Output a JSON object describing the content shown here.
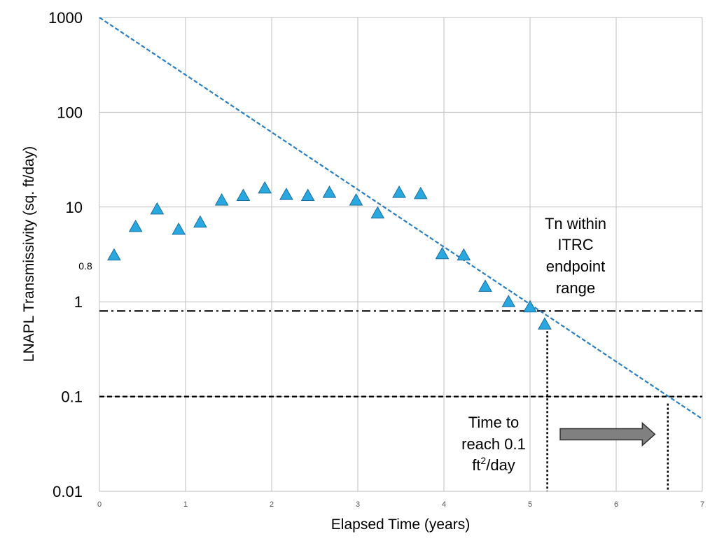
{
  "chart_data": {
    "type": "scatter",
    "title": "",
    "xlabel": "Elapsed Time (years)",
    "ylabel": "LNAPL Transmissivity (sq. ft/day)",
    "xlim": [
      0,
      7
    ],
    "ylim": [
      0.01,
      1000
    ],
    "y_scale": "log",
    "grid": true,
    "x_ticks": [
      "0",
      "1",
      "2",
      "3",
      "4",
      "5",
      "6",
      "7"
    ],
    "y_ticks": [
      {
        "value": 1000,
        "label": "1000"
      },
      {
        "value": 100,
        "label": "100"
      },
      {
        "value": 10,
        "label": "10"
      },
      {
        "value": 1,
        "label": "1"
      },
      {
        "value": 0.1,
        "label": "0.1"
      },
      {
        "value": 0.01,
        "label": "0.01"
      }
    ],
    "marker_color": "#29a8e0",
    "series": [
      {
        "values": [
          {
            "x": 0.17,
            "y": 3.1
          },
          {
            "x": 0.42,
            "y": 6.2
          },
          {
            "x": 0.67,
            "y": 9.5
          },
          {
            "x": 0.92,
            "y": 5.8
          },
          {
            "x": 1.17,
            "y": 6.9
          },
          {
            "x": 1.42,
            "y": 11.8
          },
          {
            "x": 1.67,
            "y": 13.2
          },
          {
            "x": 1.92,
            "y": 15.8
          },
          {
            "x": 2.17,
            "y": 13.5
          },
          {
            "x": 2.42,
            "y": 13.2
          },
          {
            "x": 2.67,
            "y": 14.2
          },
          {
            "x": 2.98,
            "y": 11.8
          },
          {
            "x": 3.23,
            "y": 8.6
          },
          {
            "x": 3.48,
            "y": 14.2
          },
          {
            "x": 3.73,
            "y": 13.8
          },
          {
            "x": 3.98,
            "y": 3.2
          },
          {
            "x": 4.23,
            "y": 3.1
          },
          {
            "x": 4.48,
            "y": 1.45
          },
          {
            "x": 4.75,
            "y": 1.0
          },
          {
            "x": 5.0,
            "y": 0.88
          },
          {
            "x": 5.17,
            "y": 0.58
          }
        ]
      }
    ],
    "trendline": {
      "style": "dashed",
      "color": "#2a7fc0",
      "from": {
        "x": 0,
        "y": 1000
      },
      "to": {
        "x": 7,
        "y": 0.058
      }
    },
    "reference_lines": [
      {
        "y": 0.8,
        "style": "dash-dot",
        "color": "#000000"
      },
      {
        "y": 0.1,
        "style": "dashed",
        "color": "#000000"
      }
    ],
    "vertical_markers": [
      {
        "x": 5.2,
        "y_top": 0.58,
        "style": "dotted"
      },
      {
        "x": 6.6,
        "y_top": 0.1,
        "style": "dotted"
      }
    ],
    "arrow": {
      "x_from": 5.35,
      "x_to": 6.45,
      "y": 0.04,
      "color": "#808080"
    },
    "annotations": {
      "left_small": "0.8",
      "endpoint_lines": [
        "Tn within",
        "ITRC",
        "endpoint",
        "range"
      ],
      "time_line1": "Time to",
      "time_line2": "reach 0.1",
      "time_line3_pre": "ft",
      "time_line3_sup": "2",
      "time_line3_post": "/day"
    }
  }
}
